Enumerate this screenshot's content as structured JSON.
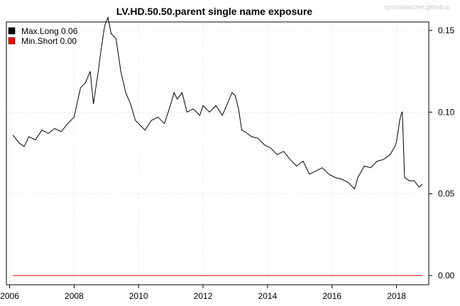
{
  "chart_data": {
    "type": "line",
    "title": "LV.HD.50.50.parent single name exposure",
    "watermark": "sysresearcher.github.io",
    "xlabel": "",
    "ylabel": "",
    "xlim": [
      2005.9,
      2019.0
    ],
    "ylim": [
      0.0,
      0.16
    ],
    "x_ticks": [
      2006,
      2008,
      2010,
      2012,
      2014,
      2016,
      2018
    ],
    "x_tick_labels": [
      "2006",
      "2008",
      "2010",
      "2012",
      "2014",
      "2016",
      "2018"
    ],
    "y_ticks": [
      0.0,
      0.05,
      0.1,
      0.15
    ],
    "y_tick_labels": [
      "0.00",
      "0.05",
      "0.10",
      "0.15"
    ],
    "y_axis_side": "right",
    "grid": true,
    "legend_position": "top-left",
    "legend": [
      {
        "label": "Max.Long 0.06",
        "color": "#000000"
      },
      {
        "label": "Min.Short 0.00",
        "color": "#ff0000"
      }
    ],
    "series": [
      {
        "name": "Max.Long",
        "color": "#000000",
        "x": [
          2006.1,
          2006.3,
          2006.45,
          2006.6,
          2006.8,
          2007.0,
          2007.2,
          2007.4,
          2007.6,
          2007.8,
          2008.0,
          2008.2,
          2008.35,
          2008.5,
          2008.6,
          2008.75,
          2008.85,
          2008.95,
          2009.05,
          2009.15,
          2009.3,
          2009.45,
          2009.6,
          2009.75,
          2009.9,
          2010.05,
          2010.2,
          2010.4,
          2010.6,
          2010.8,
          2011.0,
          2011.1,
          2011.2,
          2011.35,
          2011.5,
          2011.7,
          2011.9,
          2012.0,
          2012.2,
          2012.4,
          2012.6,
          2012.75,
          2012.9,
          2013.0,
          2013.1,
          2013.2,
          2013.3,
          2013.5,
          2013.7,
          2013.9,
          2014.1,
          2014.3,
          2014.5,
          2014.7,
          2014.9,
          2015.1,
          2015.3,
          2015.5,
          2015.7,
          2015.9,
          2016.1,
          2016.3,
          2016.5,
          2016.7,
          2016.8,
          2017.0,
          2017.2,
          2017.4,
          2017.6,
          2017.8,
          2017.95,
          2018.0,
          2018.1,
          2018.15,
          2018.18,
          2018.25,
          2018.4,
          2018.55,
          2018.7,
          2018.8
        ],
        "values": [
          0.086,
          0.081,
          0.079,
          0.085,
          0.083,
          0.089,
          0.087,
          0.09,
          0.088,
          0.093,
          0.097,
          0.115,
          0.118,
          0.125,
          0.105,
          0.125,
          0.14,
          0.153,
          0.158,
          0.148,
          0.145,
          0.125,
          0.112,
          0.105,
          0.095,
          0.092,
          0.089,
          0.095,
          0.097,
          0.093,
          0.105,
          0.112,
          0.108,
          0.112,
          0.1,
          0.102,
          0.098,
          0.104,
          0.1,
          0.104,
          0.098,
          0.105,
          0.112,
          0.11,
          0.102,
          0.089,
          0.088,
          0.085,
          0.084,
          0.08,
          0.078,
          0.074,
          0.076,
          0.071,
          0.067,
          0.07,
          0.062,
          0.064,
          0.066,
          0.062,
          0.06,
          0.059,
          0.057,
          0.053,
          0.06,
          0.067,
          0.066,
          0.07,
          0.071,
          0.074,
          0.079,
          0.082,
          0.095,
          0.099,
          0.1,
          0.06,
          0.058,
          0.058,
          0.054,
          0.056
        ]
      },
      {
        "name": "Min.Short",
        "color": "#ff0000",
        "x": [
          2006.1,
          2018.8
        ],
        "values": [
          0.0,
          0.0
        ]
      }
    ]
  }
}
